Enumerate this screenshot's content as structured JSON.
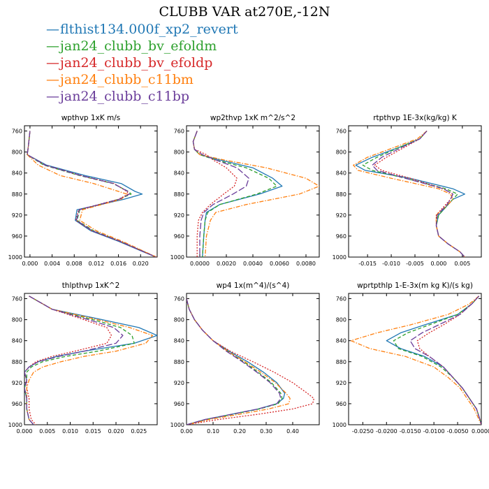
{
  "figure": {
    "title": "CLUBB VAR at270E,-12N"
  },
  "legend": [
    {
      "label": "flthist134.000f_xp2_revert",
      "color": "#1f77b4",
      "dash": "solid"
    },
    {
      "label": "jan24_clubb_bv_efoldm",
      "color": "#2ca02c",
      "dash": "dashed"
    },
    {
      "label": "jan24_clubb_bv_efoldp",
      "color": "#d62728",
      "dash": "dotted"
    },
    {
      "label": "jan24_clubb_c11bm",
      "color": "#ff7f0e",
      "dash": "dashdot"
    },
    {
      "label": "jan24_clubb_c11bp",
      "color": "#6a3d9a",
      "dash": "longdash"
    }
  ],
  "chart_data": [
    {
      "type": "line",
      "title": "wpthvp  1xK m/s",
      "xlim": [
        -0.001,
        0.023
      ],
      "ylim": [
        1000,
        750
      ],
      "xticks": [
        0.0,
        0.004,
        0.008,
        0.012,
        0.016,
        0.02
      ],
      "xtick_labels": [
        "0.000",
        "0.004",
        "0.008",
        "0.012",
        "0.016",
        "0.020"
      ],
      "yticks": [
        760,
        800,
        840,
        880,
        920,
        960,
        1000
      ],
      "grid": false,
      "y": [
        760,
        790,
        805,
        825,
        845,
        860,
        875,
        880,
        890,
        910,
        930,
        950,
        970,
        990,
        1000
      ],
      "series": [
        {
          "x": [
            0.0,
            -0.0003,
            -0.0005,
            0.003,
            0.01,
            0.0165,
            0.019,
            0.0203,
            0.017,
            0.0085,
            0.0082,
            0.011,
            0.016,
            0.0205,
            0.0228
          ]
        },
        {
          "x": [
            0.0,
            -0.0003,
            -0.0005,
            0.0025,
            0.009,
            0.015,
            0.0178,
            0.0183,
            0.016,
            0.009,
            0.0085,
            0.0115,
            0.0163,
            0.0207,
            0.0228
          ]
        },
        {
          "x": [
            0.0,
            -0.0003,
            -0.0005,
            0.0028,
            0.0093,
            0.0152,
            0.0175,
            0.0178,
            0.016,
            0.0088,
            0.0083,
            0.0112,
            0.0162,
            0.0206,
            0.0228
          ]
        },
        {
          "x": [
            0.0,
            -0.0003,
            -0.0005,
            0.0015,
            0.0055,
            0.0115,
            0.016,
            0.0175,
            0.0165,
            0.0095,
            0.009,
            0.012,
            0.0167,
            0.0208,
            0.0229
          ]
        },
        {
          "x": [
            0.0,
            -0.0003,
            -0.0005,
            0.0027,
            0.0092,
            0.0151,
            0.0177,
            0.018,
            0.0161,
            0.0089,
            0.0084,
            0.0113,
            0.0163,
            0.0206,
            0.0228
          ]
        }
      ]
    },
    {
      "type": "line",
      "title": "wp2thvp  1xK m^2/s^2",
      "xlim": [
        -0.001,
        0.009
      ],
      "ylim": [
        1000,
        750
      ],
      "xticks": [
        0.0,
        0.002,
        0.004,
        0.006,
        0.008
      ],
      "xtick_labels": [
        "0.0000",
        "0.0020",
        "0.0040",
        "0.0060",
        "0.0080"
      ],
      "yticks": [
        760,
        800,
        840,
        880,
        920,
        960,
        1000
      ],
      "grid": false,
      "y": [
        760,
        780,
        795,
        805,
        815,
        830,
        850,
        865,
        880,
        900,
        915,
        930,
        960,
        1000
      ],
      "series": [
        {
          "x": [
            -0.0002,
            -0.0005,
            -0.0004,
            0.0,
            0.0015,
            0.004,
            0.0055,
            0.0062,
            0.0045,
            0.0015,
            0.0005,
            0.0004,
            0.0003,
            0.0002
          ]
        },
        {
          "x": [
            -0.0002,
            -0.0005,
            -0.0004,
            0.0,
            0.0012,
            0.0035,
            0.0052,
            0.0058,
            0.0043,
            0.0015,
            0.0006,
            0.0004,
            0.0003,
            0.0002
          ]
        },
        {
          "x": [
            -0.0002,
            -0.0005,
            -0.0004,
            0.0005,
            0.001,
            0.002,
            0.0028,
            0.0026,
            0.0018,
            0.0008,
            0.0002,
            -0.0001,
            -0.0002,
            -0.0002
          ]
        },
        {
          "x": [
            -0.0002,
            -0.0005,
            -0.0004,
            0.0,
            0.0018,
            0.005,
            0.008,
            0.009,
            0.0075,
            0.0035,
            0.0012,
            0.0008,
            0.0005,
            0.0004
          ]
        },
        {
          "x": [
            -0.0002,
            -0.0005,
            -0.0004,
            0.0002,
            0.0012,
            0.0028,
            0.0037,
            0.0035,
            0.0025,
            0.001,
            0.0003,
            0.0001,
            0.0,
            0.0
          ]
        }
      ]
    },
    {
      "type": "line",
      "title": "rtpthvp  1E-3x(kg/kg) K",
      "xlim": [
        -0.019,
        0.009
      ],
      "ylim": [
        1000,
        750
      ],
      "xticks": [
        -0.015,
        -0.01,
        -0.005,
        0.0,
        0.005
      ],
      "xtick_labels": [
        "-0.015",
        "-0.010",
        "-0.005",
        "0.000",
        "0.005"
      ],
      "yticks": [
        760,
        800,
        840,
        880,
        920,
        960,
        1000
      ],
      "grid": false,
      "y": [
        760,
        775,
        790,
        810,
        825,
        835,
        850,
        870,
        880,
        890,
        900,
        920,
        940,
        960,
        975,
        990,
        1000
      ],
      "series": [
        {
          "x": [
            -0.0025,
            -0.004,
            -0.008,
            -0.014,
            -0.0175,
            -0.0155,
            -0.006,
            0.003,
            0.0055,
            0.003,
            0.002,
            0.0,
            -0.0005,
            0.0,
            0.002,
            0.0045,
            0.0055
          ]
        },
        {
          "x": [
            -0.0025,
            -0.004,
            -0.008,
            -0.013,
            -0.016,
            -0.014,
            -0.007,
            0.0015,
            0.004,
            0.003,
            0.002,
            0.0,
            -0.0005,
            0.0,
            0.002,
            0.0045,
            0.0055
          ]
        },
        {
          "x": [
            -0.0025,
            -0.004,
            -0.007,
            -0.011,
            -0.0135,
            -0.012,
            -0.006,
            0.001,
            0.003,
            0.0025,
            0.0015,
            -0.0005,
            -0.0005,
            0.0,
            0.002,
            0.0045,
            0.0055
          ]
        },
        {
          "x": [
            -0.0025,
            -0.0045,
            -0.009,
            -0.015,
            -0.018,
            -0.017,
            -0.01,
            0.0,
            0.0025,
            0.003,
            0.002,
            -0.0005,
            -0.0005,
            0.0,
            0.002,
            0.0045,
            0.0055
          ]
        },
        {
          "x": [
            -0.0025,
            -0.004,
            -0.0075,
            -0.012,
            -0.014,
            -0.013,
            -0.007,
            0.001,
            0.003,
            0.0025,
            0.0018,
            -0.0003,
            -0.0005,
            0.0,
            0.002,
            0.0045,
            0.0055
          ]
        }
      ]
    },
    {
      "type": "line",
      "title": "thlpthvp  1xK^2",
      "xlim": [
        0.0,
        0.029
      ],
      "ylim": [
        1000,
        750
      ],
      "xticks": [
        0.0,
        0.005,
        0.01,
        0.015,
        0.02,
        0.025
      ],
      "xtick_labels": [
        "0.000",
        "0.005",
        "0.010",
        "0.015",
        "0.020",
        "0.025"
      ],
      "yticks": [
        760,
        800,
        840,
        880,
        920,
        960,
        1000
      ],
      "grid": false,
      "y": [
        755,
        765,
        780,
        800,
        815,
        830,
        845,
        860,
        870,
        880,
        890,
        900,
        915,
        930,
        950,
        970,
        990,
        1000
      ],
      "series": [
        {
          "x": [
            0.001,
            0.003,
            0.006,
            0.017,
            0.025,
            0.029,
            0.024,
            0.013,
            0.007,
            0.003,
            0.001,
            0.0,
            0.0005,
            0.0,
            0.0005,
            0.0005,
            0.001,
            0.002
          ]
        },
        {
          "x": [
            0.001,
            0.003,
            0.006,
            0.015,
            0.021,
            0.0235,
            0.024,
            0.016,
            0.009,
            0.004,
            0.0015,
            0.0005,
            0.0005,
            0.0,
            0.0005,
            0.0005,
            0.001,
            0.002
          ]
        },
        {
          "x": [
            0.001,
            0.003,
            0.006,
            0.013,
            0.018,
            0.019,
            0.018,
            0.011,
            0.006,
            0.0025,
            0.001,
            0.0,
            0.0005,
            0.0005,
            0.001,
            0.001,
            0.0015,
            0.0025
          ]
        },
        {
          "x": [
            0.001,
            0.003,
            0.006,
            0.016,
            0.023,
            0.028,
            0.0265,
            0.02,
            0.013,
            0.008,
            0.004,
            0.002,
            0.001,
            0.0005,
            0.0005,
            0.0005,
            0.001,
            0.002
          ]
        },
        {
          "x": [
            0.001,
            0.003,
            0.006,
            0.014,
            0.0195,
            0.0215,
            0.02,
            0.013,
            0.0075,
            0.003,
            0.001,
            0.0,
            0.0005,
            0.0,
            0.0005,
            0.0005,
            0.001,
            0.002
          ]
        }
      ]
    },
    {
      "type": "line",
      "title": "wp4  1x(m^4)/(s^4)",
      "xlim": [
        0.0,
        0.5
      ],
      "ylim": [
        1000,
        750
      ],
      "xticks": [
        0.0,
        0.1,
        0.2,
        0.3,
        0.4
      ],
      "xtick_labels": [
        "0.00",
        "0.10",
        "0.20",
        "0.30",
        "0.40"
      ],
      "yticks": [
        760,
        800,
        840,
        880,
        920,
        960,
        1000
      ],
      "grid": false,
      "y": [
        760,
        780,
        800,
        820,
        840,
        860,
        880,
        900,
        920,
        940,
        950,
        960,
        970,
        980,
        990,
        1000
      ],
      "series": [
        {
          "x": [
            0.0,
            0.01,
            0.03,
            0.06,
            0.1,
            0.16,
            0.23,
            0.29,
            0.34,
            0.37,
            0.365,
            0.34,
            0.27,
            0.17,
            0.07,
            0.0
          ]
        },
        {
          "x": [
            0.0,
            0.01,
            0.03,
            0.06,
            0.1,
            0.155,
            0.215,
            0.27,
            0.32,
            0.355,
            0.36,
            0.345,
            0.275,
            0.175,
            0.075,
            0.0
          ]
        },
        {
          "x": [
            0.0,
            0.01,
            0.03,
            0.06,
            0.1,
            0.165,
            0.25,
            0.33,
            0.4,
            0.455,
            0.48,
            0.475,
            0.4,
            0.27,
            0.12,
            0.0
          ]
        },
        {
          "x": [
            0.0,
            0.01,
            0.03,
            0.06,
            0.1,
            0.155,
            0.22,
            0.28,
            0.335,
            0.375,
            0.39,
            0.385,
            0.31,
            0.2,
            0.085,
            0.0
          ]
        },
        {
          "x": [
            0.0,
            0.01,
            0.03,
            0.06,
            0.1,
            0.15,
            0.21,
            0.265,
            0.315,
            0.35,
            0.355,
            0.34,
            0.27,
            0.17,
            0.07,
            0.0
          ]
        }
      ]
    },
    {
      "type": "line",
      "title": "wprtpthlp  1-E-3x(m kg K)/(s kg)",
      "xlim": [
        -0.028,
        0.0
      ],
      "ylim": [
        1000,
        750
      ],
      "xticks": [
        -0.025,
        -0.02,
        -0.015,
        -0.01,
        -0.005,
        0.0
      ],
      "xtick_labels": [
        "-0.0250",
        "-0.0200",
        "-0.0150",
        "-0.0100",
        "-0.0050",
        "0.0000"
      ],
      "yticks": [
        760,
        800,
        840,
        880,
        920,
        960,
        1000
      ],
      "grid": false,
      "y": [
        755,
        770,
        790,
        810,
        825,
        840,
        855,
        870,
        890,
        910,
        930,
        950,
        970,
        990,
        1000
      ],
      "series": [
        {
          "x": [
            -0.0005,
            -0.002,
            -0.005,
            -0.012,
            -0.017,
            -0.02,
            -0.017,
            -0.012,
            -0.008,
            -0.006,
            -0.004,
            -0.0025,
            -0.001,
            -0.0003,
            0.0
          ]
        },
        {
          "x": [
            -0.0005,
            -0.002,
            -0.005,
            -0.011,
            -0.0155,
            -0.0185,
            -0.0175,
            -0.0125,
            -0.0085,
            -0.006,
            -0.004,
            -0.0025,
            -0.001,
            -0.0003,
            0.0
          ]
        },
        {
          "x": [
            -0.0005,
            -0.002,
            -0.0045,
            -0.008,
            -0.011,
            -0.0135,
            -0.013,
            -0.011,
            -0.008,
            -0.006,
            -0.004,
            -0.0025,
            -0.001,
            -0.0003,
            0.0
          ]
        },
        {
          "x": [
            -0.0005,
            -0.0025,
            -0.007,
            -0.015,
            -0.022,
            -0.0275,
            -0.0235,
            -0.016,
            -0.01,
            -0.007,
            -0.0045,
            -0.003,
            -0.0015,
            -0.0005,
            0.0
          ]
        },
        {
          "x": [
            -0.0005,
            -0.002,
            -0.0045,
            -0.009,
            -0.0125,
            -0.015,
            -0.014,
            -0.011,
            -0.008,
            -0.006,
            -0.004,
            -0.0025,
            -0.001,
            -0.0003,
            0.0
          ]
        }
      ]
    }
  ]
}
